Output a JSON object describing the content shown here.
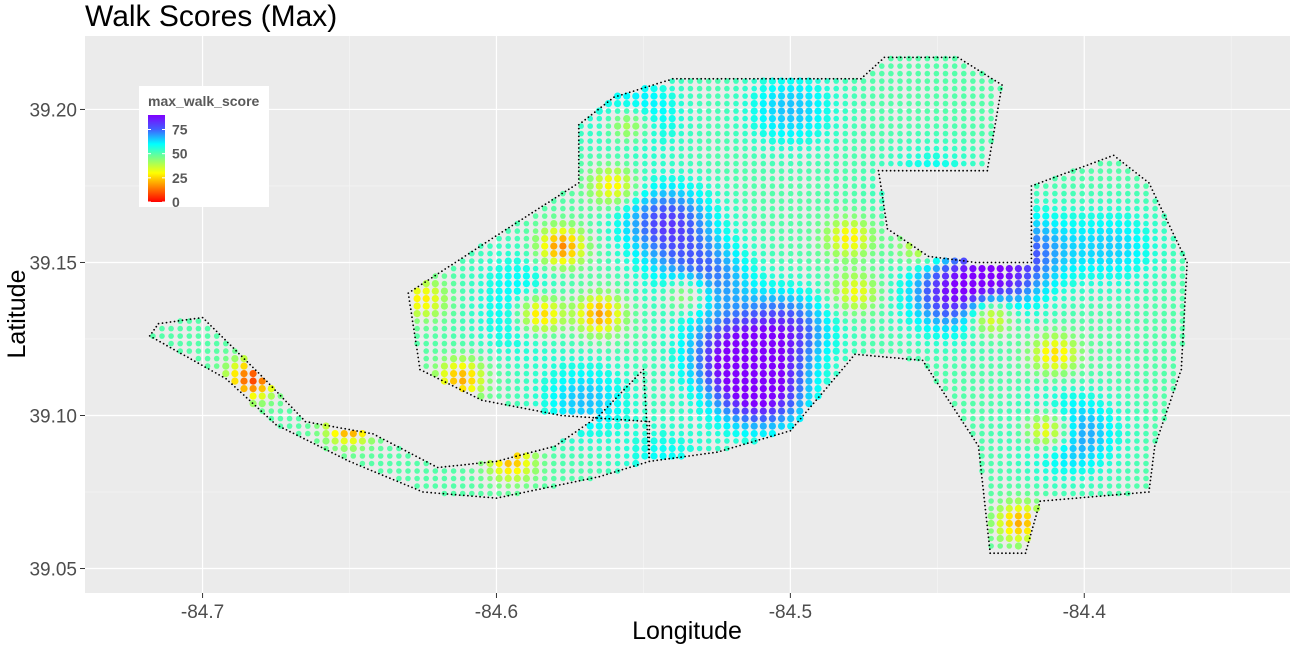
{
  "chart_data": {
    "type": "scatter",
    "title": "Walk Scores (Max)",
    "xlabel": "Longitude",
    "ylabel": "Latitude",
    "xlim": [
      -84.74,
      -84.33
    ],
    "ylim": [
      39.042,
      39.224
    ],
    "x_ticks": [
      {
        "value": -84.7,
        "label": "-84.7"
      },
      {
        "value": -84.6,
        "label": "-84.6"
      },
      {
        "value": -84.5,
        "label": "-84.5"
      },
      {
        "value": -84.4,
        "label": "-84.4"
      }
    ],
    "y_ticks": [
      {
        "value": 39.05,
        "label": "39.05"
      },
      {
        "value": 39.1,
        "label": "39.10"
      },
      {
        "value": 39.15,
        "label": "39.15"
      },
      {
        "value": 39.2,
        "label": "39.20"
      }
    ],
    "grid": true,
    "panel_color": "#ebebeb",
    "legend": {
      "title": "max_walk_score",
      "placement": "top-left",
      "range": [
        0,
        90
      ],
      "breaks": [
        {
          "value": 75,
          "label": "75"
        },
        {
          "value": 50,
          "label": "50"
        },
        {
          "value": 25,
          "label": "25"
        },
        {
          "value": 0,
          "label": "0"
        }
      ],
      "colors": [
        "#ff0000",
        "#ff8000",
        "#ffff00",
        "#80ff80",
        "#00ffff",
        "#4060ff",
        "#8000ff"
      ]
    },
    "base_value": 50,
    "hotspots": [
      {
        "lon": -84.51,
        "lat": 39.108,
        "score": 92
      },
      {
        "lon": -84.52,
        "lat": 39.12,
        "score": 84
      },
      {
        "lon": -84.502,
        "lat": 39.128,
        "score": 80
      },
      {
        "lon": -84.53,
        "lat": 39.145,
        "score": 76
      },
      {
        "lon": -84.542,
        "lat": 39.163,
        "score": 80
      },
      {
        "lon": -84.445,
        "lat": 39.14,
        "score": 82
      },
      {
        "lon": -84.43,
        "lat": 39.145,
        "score": 78
      },
      {
        "lon": -84.418,
        "lat": 39.155,
        "score": 68
      },
      {
        "lon": -84.39,
        "lat": 39.155,
        "score": 64
      },
      {
        "lon": -84.452,
        "lat": 39.175,
        "score": 62
      },
      {
        "lon": -84.5,
        "lat": 39.2,
        "score": 66
      },
      {
        "lon": -84.553,
        "lat": 39.198,
        "score": 68
      },
      {
        "lon": -84.405,
        "lat": 39.094,
        "score": 74
      },
      {
        "lon": -84.57,
        "lat": 39.105,
        "score": 66
      },
      {
        "lon": -84.592,
        "lat": 39.13,
        "score": 60
      },
      {
        "lon": -84.592,
        "lat": 39.145,
        "score": 58
      },
      {
        "lon": -84.543,
        "lat": 39.085,
        "score": 60
      }
    ],
    "low_spots": [
      {
        "lon": -84.578,
        "lat": 39.155,
        "score": 14
      },
      {
        "lon": -84.585,
        "lat": 39.133,
        "score": 16
      },
      {
        "lon": -84.565,
        "lat": 39.133,
        "score": 18
      },
      {
        "lon": -84.612,
        "lat": 39.112,
        "score": 20
      },
      {
        "lon": -84.432,
        "lat": 39.133,
        "score": 16
      },
      {
        "lon": -84.412,
        "lat": 39.095,
        "score": 14
      },
      {
        "lon": -84.422,
        "lat": 39.065,
        "score": 20
      },
      {
        "lon": -84.41,
        "lat": 39.12,
        "score": 26
      },
      {
        "lon": -84.683,
        "lat": 39.112,
        "score": 8
      },
      {
        "lon": -84.65,
        "lat": 39.097,
        "score": 14
      },
      {
        "lon": -84.595,
        "lat": 39.085,
        "score": 22
      },
      {
        "lon": -84.555,
        "lat": 39.195,
        "score": 24
      },
      {
        "lon": -84.535,
        "lat": 39.14,
        "score": 24
      },
      {
        "lon": -84.48,
        "lat": 39.158,
        "score": 28
      },
      {
        "lon": -84.56,
        "lat": 39.175,
        "score": 26
      },
      {
        "lon": -84.478,
        "lat": 39.14,
        "score": 30
      },
      {
        "lon": -84.625,
        "lat": 39.138,
        "score": 28
      },
      {
        "lon": -84.455,
        "lat": 39.155,
        "score": 30
      }
    ],
    "regions": [
      [
        [
          -84.715,
          39.13
        ],
        [
          -84.7,
          39.132
        ],
        [
          -84.68,
          39.113
        ],
        [
          -84.665,
          39.098
        ],
        [
          -84.642,
          39.094
        ],
        [
          -84.62,
          39.083
        ],
        [
          -84.6,
          39.085
        ],
        [
          -84.58,
          39.09
        ],
        [
          -84.565,
          39.1
        ],
        [
          -84.55,
          39.115
        ],
        [
          -84.548,
          39.085
        ],
        [
          -84.565,
          39.08
        ],
        [
          -84.6,
          39.073
        ],
        [
          -84.625,
          39.075
        ],
        [
          -84.65,
          39.085
        ],
        [
          -84.675,
          39.097
        ],
        [
          -84.692,
          39.112
        ],
        [
          -84.718,
          39.126
        ]
      ],
      [
        [
          -84.622,
          39.145
        ],
        [
          -84.598,
          39.16
        ],
        [
          -84.572,
          39.176
        ],
        [
          -84.572,
          39.195
        ],
        [
          -84.56,
          39.204
        ],
        [
          -84.54,
          39.21
        ],
        [
          -84.5,
          39.21
        ],
        [
          -84.476,
          39.21
        ],
        [
          -84.468,
          39.217
        ],
        [
          -84.443,
          39.217
        ],
        [
          -84.428,
          39.208
        ],
        [
          -84.433,
          39.18
        ],
        [
          -84.47,
          39.18
        ],
        [
          -84.467,
          39.161
        ],
        [
          -84.453,
          39.152
        ],
        [
          -84.437,
          39.15
        ],
        [
          -84.418,
          39.15
        ],
        [
          -84.418,
          39.175
        ],
        [
          -84.39,
          39.185
        ],
        [
          -84.378,
          39.176
        ],
        [
          -84.365,
          39.15
        ],
        [
          -84.367,
          39.115
        ],
        [
          -84.376,
          39.09
        ],
        [
          -84.378,
          39.075
        ],
        [
          -84.415,
          39.072
        ],
        [
          -84.42,
          39.055
        ],
        [
          -84.432,
          39.055
        ],
        [
          -84.436,
          39.09
        ],
        [
          -84.455,
          39.118
        ],
        [
          -84.478,
          39.12
        ],
        [
          -84.5,
          39.095
        ],
        [
          -84.525,
          39.088
        ],
        [
          -84.548,
          39.085
        ],
        [
          -84.548,
          39.098
        ],
        [
          -84.578,
          39.1
        ],
        [
          -84.605,
          39.105
        ],
        [
          -84.626,
          39.115
        ],
        [
          -84.63,
          39.14
        ]
      ]
    ]
  }
}
